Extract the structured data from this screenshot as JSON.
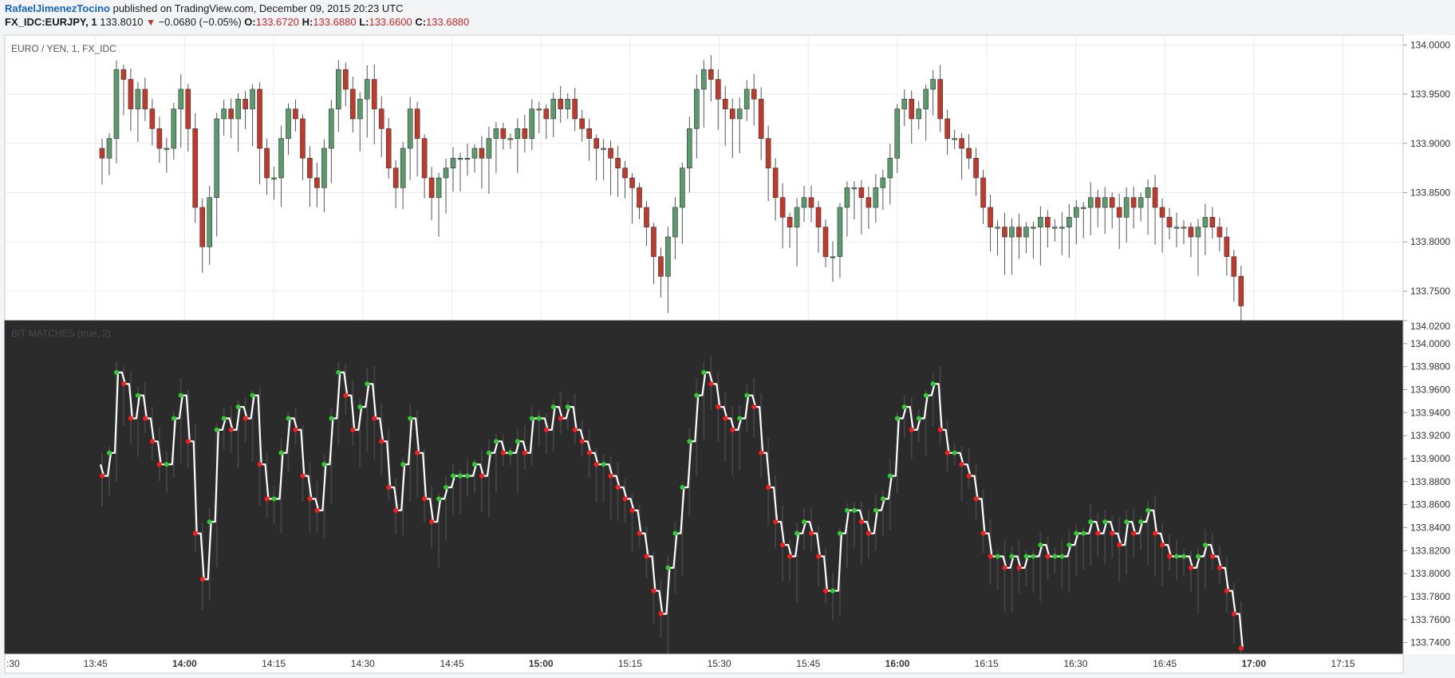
{
  "header": {
    "author": "RafaelJimenezTocino",
    "published": "published on TradingView.com, December 09, 2015 20:23 UTC"
  },
  "ohlc": {
    "symbol": "FX_IDC:EURJPY, 1",
    "last": "133.8010",
    "change": "−0.0680 (−0.05%)",
    "o_label": "O:",
    "o": "133.6720",
    "h_label": "H:",
    "h": "133.6880",
    "l_label": "L:",
    "l": "133.6600",
    "c_label": "C:",
    "c": "133.6880"
  },
  "colors": {
    "bull": "#5b9a6b",
    "bear": "#c0392b",
    "lower_bg": "#2b2b2b",
    "green_dot": "#2ecc2e",
    "red_dot": "#ff1a1a"
  },
  "chart_data": [
    {
      "type": "candlestick",
      "title": "EURO / YEN, 1, FX_IDC",
      "ylim": [
        133.72,
        134.01
      ],
      "yticks": [
        "134.0000",
        "133.9500",
        "133.9000",
        "133.8500",
        "133.8000",
        "133.7500"
      ],
      "close": [
        133.885,
        133.905,
        133.975,
        133.965,
        133.935,
        133.955,
        133.935,
        133.915,
        133.895,
        133.895,
        133.935,
        133.955,
        133.915,
        133.835,
        133.795,
        133.845,
        133.925,
        133.935,
        133.925,
        133.945,
        133.935,
        133.955,
        133.895,
        133.865,
        133.865,
        133.905,
        133.935,
        133.925,
        133.885,
        133.865,
        133.855,
        133.895,
        133.935,
        133.975,
        133.955,
        133.925,
        133.945,
        133.965,
        133.935,
        133.915,
        133.875,
        133.855,
        133.895,
        133.935,
        133.905,
        133.865,
        133.845,
        133.865,
        133.875,
        133.885,
        133.885,
        133.885,
        133.895,
        133.885,
        133.905,
        133.915,
        133.905,
        133.905,
        133.915,
        133.905,
        133.935,
        133.935,
        133.925,
        133.945,
        133.935,
        133.945,
        133.925,
        133.915,
        133.905,
        133.895,
        133.895,
        133.885,
        133.875,
        133.865,
        133.855,
        133.835,
        133.815,
        133.785,
        133.765,
        133.805,
        133.835,
        133.875,
        133.915,
        133.955,
        133.975,
        133.965,
        133.945,
        133.935,
        133.925,
        133.935,
        133.955,
        133.945,
        133.905,
        133.875,
        133.845,
        133.825,
        133.815,
        133.835,
        133.845,
        133.835,
        133.815,
        133.785,
        133.785,
        133.835,
        133.855,
        133.855,
        133.845,
        133.835,
        133.855,
        133.865,
        133.885,
        133.935,
        133.945,
        133.925,
        133.935,
        133.955,
        133.965,
        133.925,
        133.905,
        133.905,
        133.895,
        133.885,
        133.865,
        133.835,
        133.815,
        133.815,
        133.805,
        133.815,
        133.805,
        133.815,
        133.815,
        133.825,
        133.815,
        133.815,
        133.815,
        133.825,
        133.835,
        133.835,
        133.845,
        133.835,
        133.845,
        133.835,
        133.825,
        133.845,
        133.835,
        133.845,
        133.855,
        133.835,
        133.825,
        133.815,
        133.815,
        133.815,
        133.805,
        133.815,
        133.825,
        133.815,
        133.805,
        133.785,
        133.765,
        133.735
      ],
      "color_points": "Candle colors: green = up, red = down"
    },
    {
      "type": "line",
      "title": "BIT MATCHES (true, 2)",
      "ylim": [
        133.73,
        134.02
      ],
      "yticks": [
        "134.0200",
        "134.0000",
        "133.9800",
        "133.9600",
        "133.9400",
        "133.9200",
        "133.9000",
        "133.8800",
        "133.8600",
        "133.8400",
        "133.8200",
        "133.8000",
        "133.7800",
        "133.7600",
        "133.7400"
      ]
    }
  ],
  "xaxis": {
    "ticks": [
      {
        "label": ":30",
        "bold": false
      },
      {
        "label": "13:45",
        "bold": false
      },
      {
        "label": "14:00",
        "bold": true
      },
      {
        "label": "14:15",
        "bold": false
      },
      {
        "label": "14:30",
        "bold": false
      },
      {
        "label": "14:45",
        "bold": false
      },
      {
        "label": "15:00",
        "bold": true
      },
      {
        "label": "15:15",
        "bold": false
      },
      {
        "label": "15:30",
        "bold": false
      },
      {
        "label": "15:45",
        "bold": false
      },
      {
        "label": "16:00",
        "bold": true
      },
      {
        "label": "16:15",
        "bold": false
      },
      {
        "label": "16:30",
        "bold": false
      },
      {
        "label": "16:45",
        "bold": false
      },
      {
        "label": "17:00",
        "bold": true
      },
      {
        "label": "17:15",
        "bold": false
      }
    ]
  }
}
